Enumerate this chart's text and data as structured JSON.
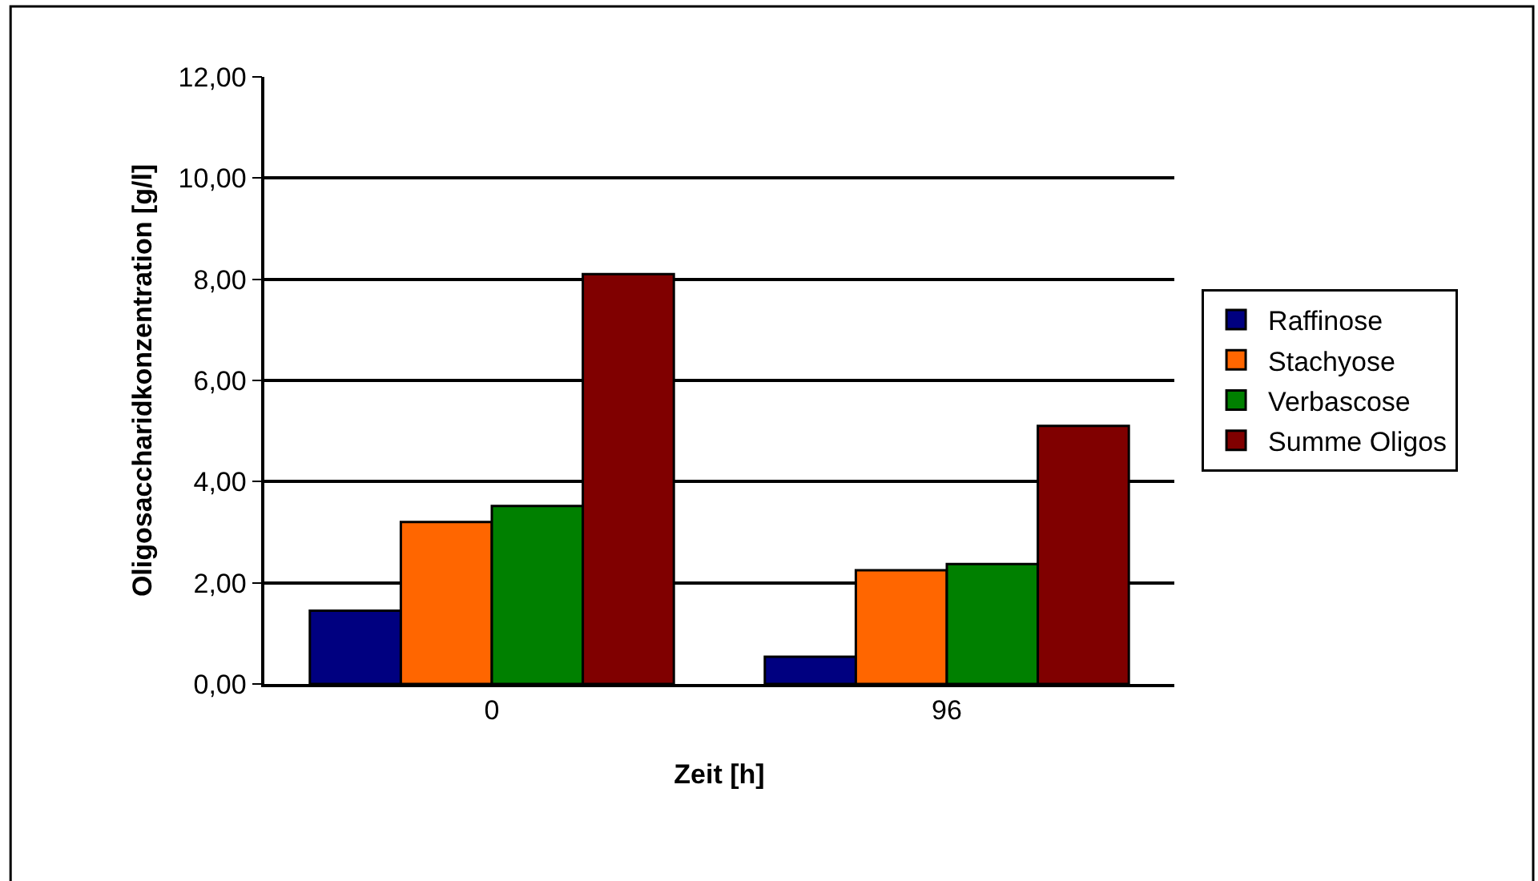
{
  "chart_data": {
    "type": "bar",
    "xlabel": "Zeit [h]",
    "ylabel": "Oligosaccharidkonzentration [g/l]",
    "categories": [
      "0",
      "96"
    ],
    "series": [
      {
        "name": "Raffinose",
        "color": "#000080",
        "values": [
          1.45,
          0.54
        ]
      },
      {
        "name": "Stachyose",
        "color": "#ff6600",
        "values": [
          3.2,
          2.25
        ]
      },
      {
        "name": "Verbascose",
        "color": "#008000",
        "values": [
          3.52,
          2.37
        ]
      },
      {
        "name": "Summe Oligos",
        "color": "#800000",
        "values": [
          8.1,
          5.1
        ]
      }
    ],
    "ylim": [
      0,
      12
    ],
    "yticks": [
      {
        "value": 0,
        "label": "0,00"
      },
      {
        "value": 2,
        "label": "2,00"
      },
      {
        "value": 4,
        "label": "4,00"
      },
      {
        "value": 6,
        "label": "6,00"
      },
      {
        "value": 8,
        "label": "8,00"
      },
      {
        "value": 10,
        "label": "10,00"
      },
      {
        "value": 12,
        "label": "12,00"
      }
    ],
    "grid": "y",
    "legend": "right"
  }
}
